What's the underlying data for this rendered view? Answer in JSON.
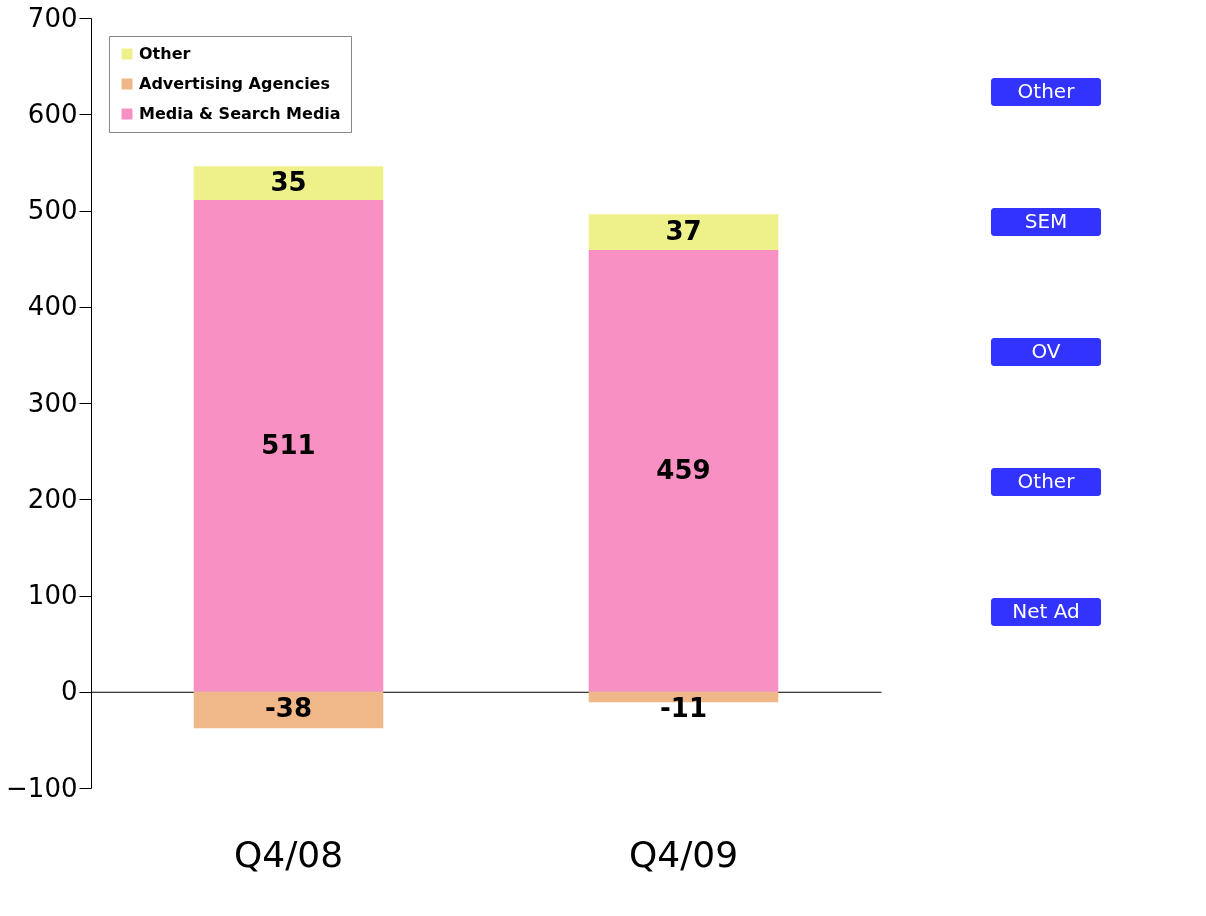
{
  "chart_data": {
    "type": "bar",
    "stacked": true,
    "categories": [
      "Q4/08",
      "Q4/09"
    ],
    "series": [
      {
        "name": "Media & Search Media",
        "color": "#f890c4",
        "values": [
          511,
          459
        ]
      },
      {
        "name": "Advertising Agencies",
        "color": "#f0b888",
        "values": [
          -38,
          -11
        ]
      },
      {
        "name": "Other",
        "color": "#eef08a",
        "values": [
          35,
          37
        ]
      }
    ],
    "ylim": [
      -100,
      700
    ],
    "yticks": [
      -100,
      0,
      100,
      200,
      300,
      400,
      500,
      600,
      700
    ],
    "data_labels": true,
    "legend": "top left",
    "annotations": [
      "Other",
      "SEM",
      "OV",
      "Other",
      "Net Ad"
    ]
  }
}
